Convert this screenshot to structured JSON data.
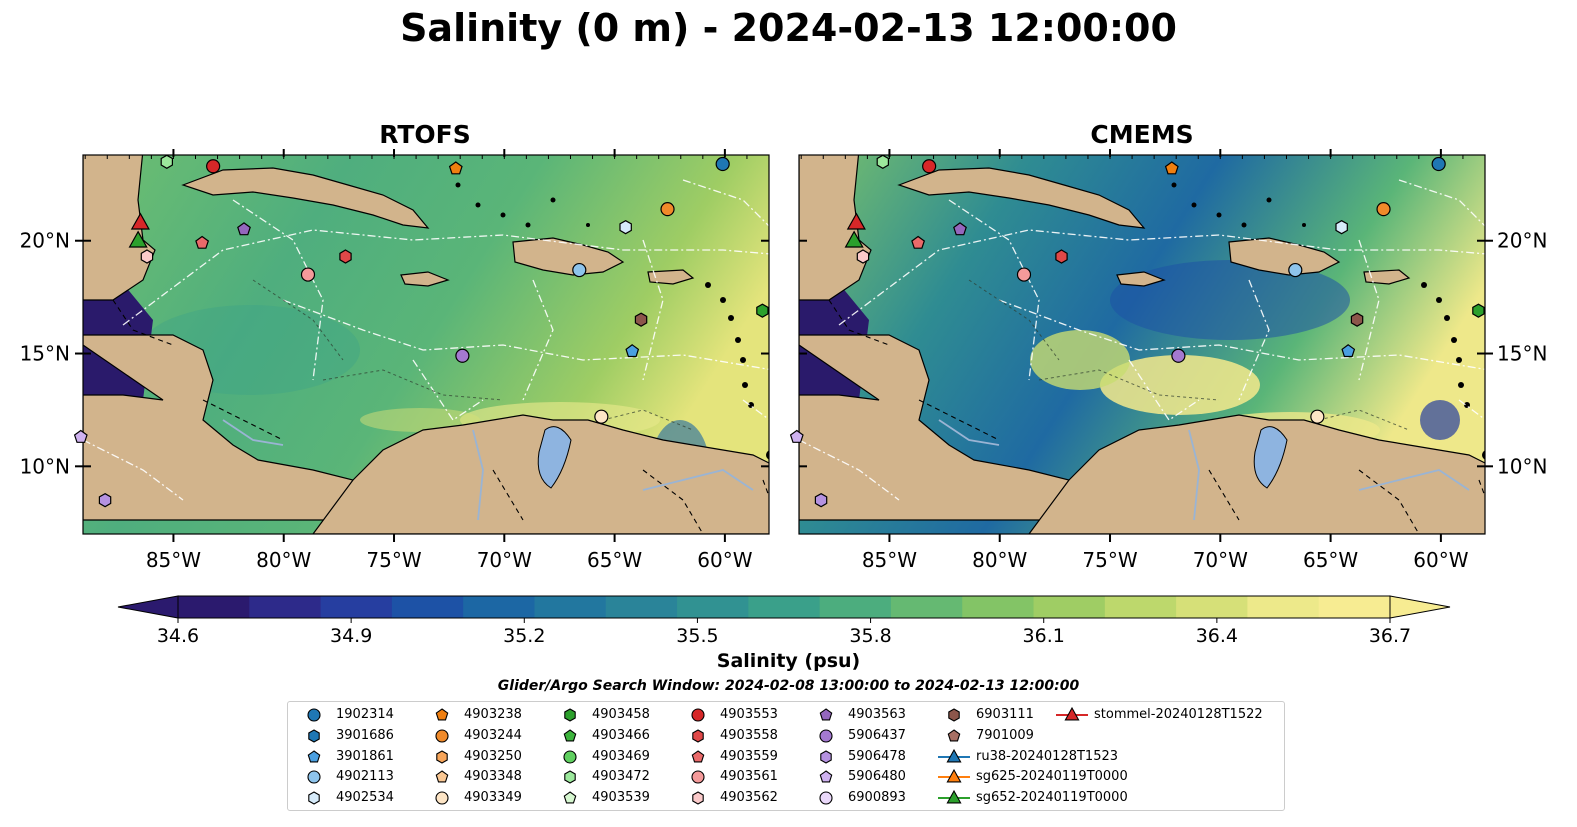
{
  "title": "Salinity (0 m) - 2024-02-13 12:00:00",
  "panels": [
    {
      "title": "RTOFS"
    },
    {
      "title": "CMEMS"
    }
  ],
  "axes": {
    "lat_labels": [
      "20°N",
      "15°N",
      "10°N"
    ],
    "lon_labels": [
      "85°W",
      "80°W",
      "75°W",
      "70°W",
      "65°W",
      "60°W"
    ]
  },
  "colors": {
    "land": "#d2b48c",
    "ocean_deep_low": "#2a1a6b",
    "lake": "#8eb4e0",
    "river": "#9ab4d4"
  },
  "colorbar": {
    "ticks": [
      "34.6",
      "34.9",
      "35.2",
      "35.5",
      "35.8",
      "36.1",
      "36.4",
      "36.7"
    ],
    "label": "Salinity (psu)",
    "colors": [
      "#2b1a6e",
      "#2d2a8a",
      "#263ea0",
      "#1d52a6",
      "#1c67a4",
      "#22779f",
      "#2a8499",
      "#319292",
      "#3aa08a",
      "#4cad7e",
      "#65b972",
      "#83c466",
      "#9fcd64",
      "#bdd86c",
      "#d6e078",
      "#ede98a",
      "#f7ec92"
    ]
  },
  "search_window": "Glider/Argo Search Window: 2024-02-08 13:00:00 to 2024-02-13 12:00:00",
  "legend": {
    "items": [
      {
        "label": "1902314",
        "shape": "circle",
        "color": "#1f77b4"
      },
      {
        "label": "3901686",
        "shape": "hexagon",
        "color": "#1f77b4"
      },
      {
        "label": "3901861",
        "shape": "pentagon",
        "color": "#4a9fe0"
      },
      {
        "label": "4902113",
        "shape": "circle",
        "color": "#8ec4ec"
      },
      {
        "label": "4902534",
        "shape": "hexagon",
        "color": "#d6ebfa"
      },
      {
        "label": "4903238",
        "shape": "pentagon",
        "color": "#f07f10"
      },
      {
        "label": "4903244",
        "shape": "circle",
        "color": "#f08a2a"
      },
      {
        "label": "4903250",
        "shape": "hexagon",
        "color": "#f7a55a"
      },
      {
        "label": "4903348",
        "shape": "pentagon",
        "color": "#fac894"
      },
      {
        "label": "4903349",
        "shape": "circle",
        "color": "#fde5c6"
      },
      {
        "label": "4903458",
        "shape": "hexagon",
        "color": "#2ca02c"
      },
      {
        "label": "4903466",
        "shape": "pentagon",
        "color": "#3db43d"
      },
      {
        "label": "4903469",
        "shape": "circle",
        "color": "#5fcf5f"
      },
      {
        "label": "4903472",
        "shape": "hexagon",
        "color": "#9ce89c"
      },
      {
        "label": "4903539",
        "shape": "pentagon",
        "color": "#d6f7d0"
      },
      {
        "label": "4903553",
        "shape": "circle",
        "color": "#d62728"
      },
      {
        "label": "4903558",
        "shape": "hexagon",
        "color": "#e04848"
      },
      {
        "label": "4903559",
        "shape": "pentagon",
        "color": "#ea6a6a"
      },
      {
        "label": "4903561",
        "shape": "circle",
        "color": "#f49a9a"
      },
      {
        "label": "4903562",
        "shape": "hexagon",
        "color": "#fbcaca"
      },
      {
        "label": "4903563",
        "shape": "pentagon",
        "color": "#9467bd"
      },
      {
        "label": "5906437",
        "shape": "circle",
        "color": "#a479d0"
      },
      {
        "label": "5906478",
        "shape": "hexagon",
        "color": "#b592e0"
      },
      {
        "label": "5906480",
        "shape": "pentagon",
        "color": "#cfb2f0"
      },
      {
        "label": "6900893",
        "shape": "circle",
        "color": "#ead8fa"
      },
      {
        "label": "6903111",
        "shape": "hexagon",
        "color": "#8c564b"
      },
      {
        "label": "7901009",
        "shape": "pentagon",
        "color": "#a87064"
      },
      {
        "label": "ru38-20240128T1523",
        "shape": "triangle-line",
        "color": "#1f77b4"
      },
      {
        "label": "sg625-20240119T0000",
        "shape": "triangle-line",
        "color": "#ff7f0e"
      },
      {
        "label": "sg652-20240119T0000",
        "shape": "triangle-line",
        "color": "#2ca02c"
      },
      {
        "label": "stommel-20240128T1522",
        "shape": "triangle-line",
        "color": "#d62728"
      }
    ]
  },
  "map_markers": [
    {
      "id": "1902314",
      "lon": -60.1,
      "lat": 23.4
    },
    {
      "id": "4902113",
      "lon": -66.6,
      "lat": 18.7
    },
    {
      "id": "3901861",
      "lon": -64.2,
      "lat": 15.1
    },
    {
      "id": "4902534",
      "lon": -64.5,
      "lat": 20.6
    },
    {
      "id": "4903238",
      "lon": -72.2,
      "lat": 23.2
    },
    {
      "id": "4903244",
      "lon": -62.6,
      "lat": 21.4
    },
    {
      "id": "4903349",
      "lon": -65.6,
      "lat": 12.2
    },
    {
      "id": "4903458",
      "lon": -58.3,
      "lat": 16.9
    },
    {
      "id": "4903472",
      "lon": -85.3,
      "lat": 23.5
    },
    {
      "id": "4903553",
      "lon": -83.2,
      "lat": 23.3
    },
    {
      "id": "4903558",
      "lon": -77.2,
      "lat": 19.3
    },
    {
      "id": "4903559",
      "lon": -83.7,
      "lat": 19.9
    },
    {
      "id": "4903561",
      "lon": -78.9,
      "lat": 18.5
    },
    {
      "id": "4903562",
      "lon": -86.2,
      "lat": 19.3
    },
    {
      "id": "4903563",
      "lon": -81.8,
      "lat": 20.5
    },
    {
      "id": "5906437",
      "lon": -71.9,
      "lat": 14.9
    },
    {
      "id": "5906478",
      "lon": -88.1,
      "lat": 8.5
    },
    {
      "id": "5906480",
      "lon": -89.2,
      "lat": 11.3
    },
    {
      "id": "6903111",
      "lon": -63.8,
      "lat": 16.5
    },
    {
      "id": "sg652-20240119T0000",
      "lon": -86.6,
      "lat": 20.0
    },
    {
      "id": "stommel-20240128T1522",
      "lon": -86.5,
      "lat": 20.8
    }
  ]
}
